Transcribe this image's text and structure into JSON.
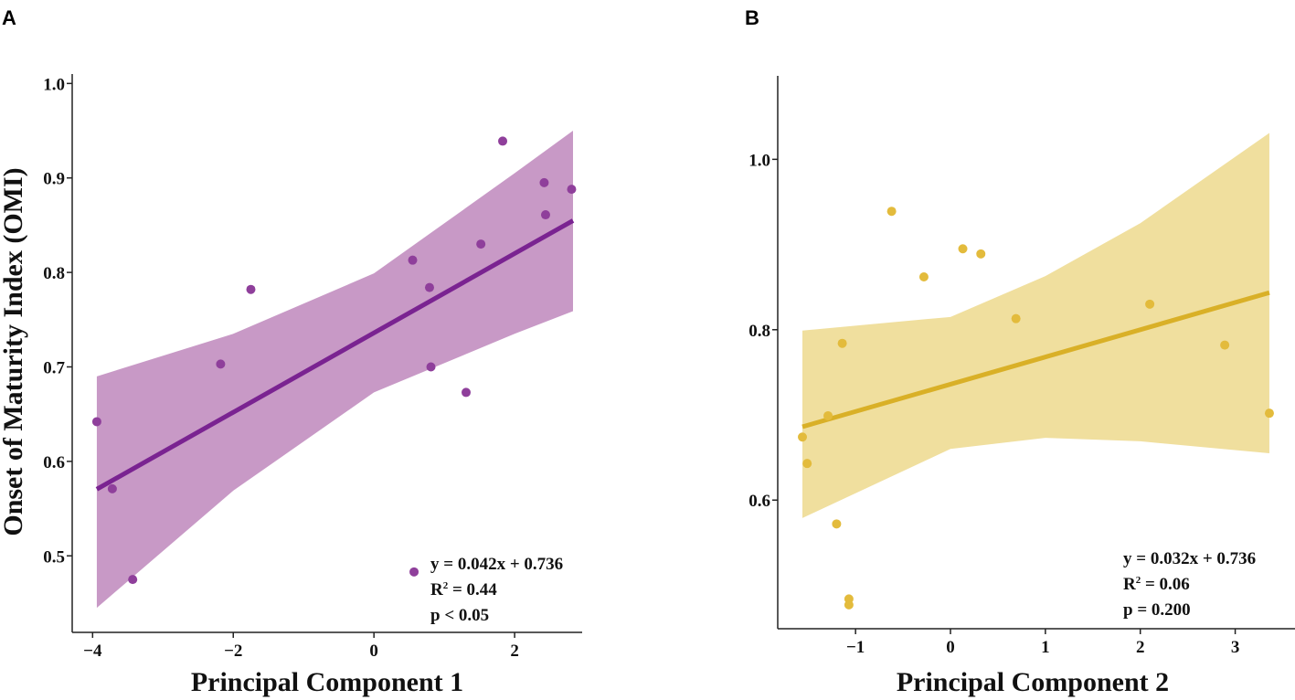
{
  "chart_data": [
    {
      "type": "scatter",
      "panel_label": "A",
      "title": "",
      "xlabel": "Principal Component 1",
      "ylabel": "Onset of Maturity Index (OMI)",
      "xlim": [
        -4.29,
        2.96
      ],
      "ylim": [
        0.419,
        1.01
      ],
      "xticks": [
        -4,
        -2,
        0,
        2
      ],
      "xtick_labels": [
        "−4",
        "−2",
        "0",
        "2"
      ],
      "yticks": [
        0.5,
        0.6,
        0.7,
        0.8,
        0.9,
        1.0
      ],
      "ytick_labels": [
        "0.5",
        "0.6",
        "0.7",
        "0.8",
        "0.9",
        "1.0"
      ],
      "grid": false,
      "colors": {
        "point": "#8f3f9b",
        "line": "#7a2391",
        "band": "#c899c6"
      },
      "points": [
        {
          "x": -3.94,
          "y": 0.642
        },
        {
          "x": -3.72,
          "y": 0.571
        },
        {
          "x": -3.43,
          "y": 0.475
        },
        {
          "x": -2.18,
          "y": 0.703
        },
        {
          "x": -1.75,
          "y": 0.782
        },
        {
          "x": 0.55,
          "y": 0.813
        },
        {
          "x": 0.79,
          "y": 0.784
        },
        {
          "x": 0.81,
          "y": 0.7
        },
        {
          "x": 1.31,
          "y": 0.673
        },
        {
          "x": 1.52,
          "y": 0.83
        },
        {
          "x": 1.83,
          "y": 0.939
        },
        {
          "x": 2.42,
          "y": 0.895
        },
        {
          "x": 2.44,
          "y": 0.861
        },
        {
          "x": 2.81,
          "y": 0.888
        },
        {
          "x": 0.57,
          "y": 0.483
        }
      ],
      "fit": {
        "slope": 0.042,
        "intercept": 0.736,
        "x_range": [
          -3.94,
          2.83
        ]
      },
      "ci_band": {
        "x": [
          -3.94,
          -2,
          0,
          2,
          2.83
        ],
        "lower": [
          0.445,
          0.569,
          0.673,
          0.735,
          0.759
        ],
        "upper": [
          0.69,
          0.735,
          0.799,
          0.905,
          0.95
        ]
      },
      "annotation": {
        "eq": "y = 0.042x + 0.736",
        "r2_prefix": "R",
        "r2_sup": "2",
        "r2_value": " = 0.44",
        "p": "p < 0.05"
      }
    },
    {
      "type": "scatter",
      "panel_label": "B",
      "title": "",
      "xlabel": "Principal Component 2",
      "ylabel": "",
      "xlim": [
        -1.82,
        3.63
      ],
      "ylim": [
        0.449,
        1.098
      ],
      "xticks": [
        -1,
        0,
        1,
        2,
        3
      ],
      "xtick_labels": [
        "−1",
        "0",
        "1",
        "2",
        "3"
      ],
      "yticks": [
        0.6,
        0.8,
        1.0
      ],
      "ytick_labels": [
        "0.6",
        "0.8",
        "1.0"
      ],
      "grid": false,
      "colors": {
        "point": "#e3bb3c",
        "line": "#d9b027",
        "band": "#f0df9e"
      },
      "points": [
        {
          "x": -1.56,
          "y": 0.674
        },
        {
          "x": -1.51,
          "y": 0.643
        },
        {
          "x": -1.29,
          "y": 0.699
        },
        {
          "x": -1.14,
          "y": 0.784
        },
        {
          "x": -1.2,
          "y": 0.572
        },
        {
          "x": -1.07,
          "y": 0.484
        },
        {
          "x": -1.07,
          "y": 0.477
        },
        {
          "x": -0.62,
          "y": 0.939
        },
        {
          "x": -0.28,
          "y": 0.862
        },
        {
          "x": 0.13,
          "y": 0.895
        },
        {
          "x": 0.32,
          "y": 0.889
        },
        {
          "x": 0.69,
          "y": 0.813
        },
        {
          "x": 2.1,
          "y": 0.83
        },
        {
          "x": 2.89,
          "y": 0.782
        },
        {
          "x": 3.36,
          "y": 0.702
        }
      ],
      "fit": {
        "slope": 0.032,
        "intercept": 0.736,
        "x_range": [
          -1.56,
          3.36
        ]
      },
      "ci_band": {
        "x": [
          -1.56,
          0,
          1,
          2,
          3.36
        ],
        "lower": [
          0.579,
          0.66,
          0.673,
          0.669,
          0.655
        ],
        "upper": [
          0.799,
          0.815,
          0.863,
          0.925,
          1.031
        ]
      },
      "annotation": {
        "eq": "y = 0.032x + 0.736",
        "r2_prefix": "R",
        "r2_sup": "2",
        "r2_value": " = 0.06",
        "p": "p = 0.200"
      }
    }
  ]
}
